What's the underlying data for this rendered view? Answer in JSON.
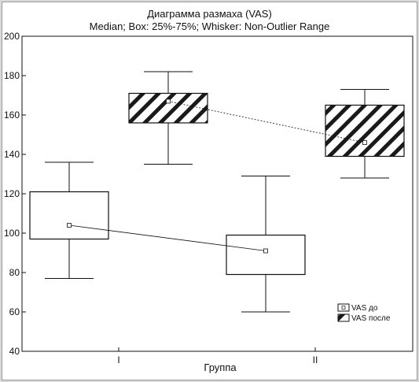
{
  "chart_data": {
    "type": "box",
    "title": "Диаграмма размаха  (VAS)",
    "subtitle": "Median; Box: 25%-75%; Whisker: Non-Outlier Range",
    "xlabel": "Группа",
    "ylabel": "",
    "ylim": [
      40,
      200
    ],
    "yticks": [
      40,
      60,
      80,
      100,
      120,
      140,
      160,
      180,
      200
    ],
    "categories": [
      "I",
      "II"
    ],
    "series": [
      {
        "name": "VAS до",
        "pattern": "plain",
        "boxes": [
          {
            "category": "I",
            "whisker_low": 77,
            "q1": 97,
            "median": 104,
            "q3": 121,
            "whisker_high": 136
          },
          {
            "category": "II",
            "whisker_low": 60,
            "q1": 79,
            "median": 91,
            "q3": 99,
            "whisker_high": 129
          }
        ]
      },
      {
        "name": "VAS после",
        "pattern": "diagonal-hatch",
        "boxes": [
          {
            "category": "I",
            "whisker_low": 135,
            "q1": 156,
            "median": 167,
            "q3": 171,
            "whisker_high": 182
          },
          {
            "category": "II",
            "whisker_low": 128,
            "q1": 139,
            "median": 146,
            "q3": 165,
            "whisker_high": 173
          }
        ]
      }
    ],
    "legend_position": "lower-right",
    "grid": false,
    "colors": {
      "line": "#111111",
      "hatch": "#1a1a1a",
      "background": "#ffffff",
      "frame_bg": "#d9d9d9"
    }
  }
}
